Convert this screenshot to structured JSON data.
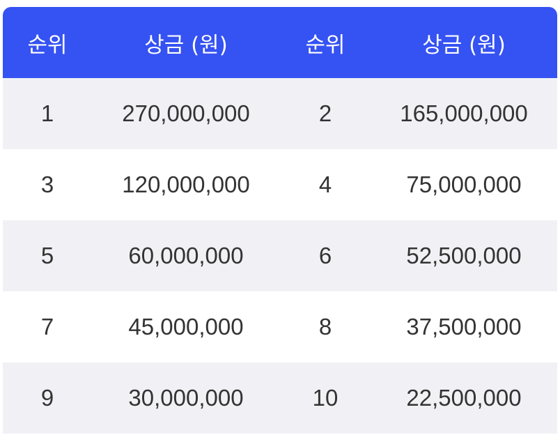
{
  "table": {
    "headers": [
      "순위",
      "상금 (원)",
      "순위",
      "상금 (원)"
    ],
    "rows": [
      [
        "1",
        "270,000,000",
        "2",
        "165,000,000"
      ],
      [
        "3",
        "120,000,000",
        "4",
        "75,000,000"
      ],
      [
        "5",
        "60,000,000",
        "6",
        "52,500,000"
      ],
      [
        "7",
        "45,000,000",
        "8",
        "37,500,000"
      ],
      [
        "9",
        "30,000,000",
        "10",
        "22,500,000"
      ]
    ]
  },
  "colors": {
    "header_bg": "#3552f2",
    "header_text": "#ffffff",
    "row_shaded": "#f1f1f5",
    "row_plain": "#ffffff",
    "cell_text": "#333333"
  }
}
